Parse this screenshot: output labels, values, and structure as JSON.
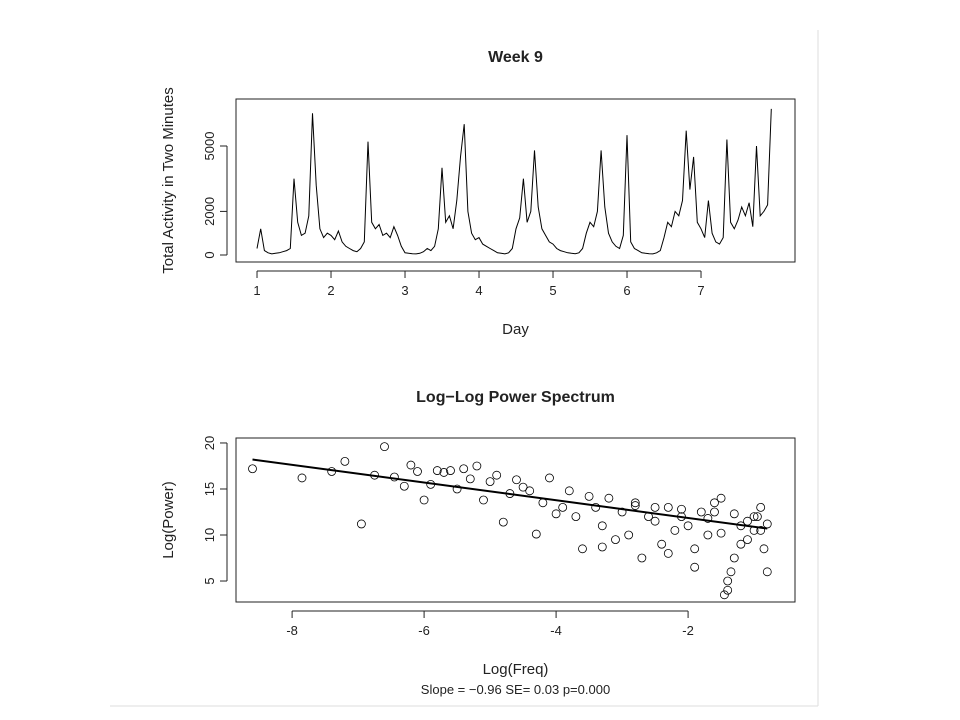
{
  "chart_data": [
    {
      "type": "line",
      "title": "Week 9",
      "x_label": "Day",
      "y_label": "Total Activity in Two Minutes",
      "xlim": [
        0.716,
        8.27
      ],
      "ylim": [
        -321,
        7156
      ],
      "xticks": [
        1,
        2,
        3,
        4,
        5,
        6,
        7
      ],
      "yticks": [
        0,
        2000,
        5000
      ],
      "series": [
        {
          "color": "#000000",
          "x": [
            1.0,
            1.05,
            1.1,
            1.15,
            1.2,
            1.25,
            1.3,
            1.35,
            1.4,
            1.45,
            1.5,
            1.55,
            1.6,
            1.65,
            1.7,
            1.75,
            1.8,
            1.85,
            1.9,
            1.95,
            2.0,
            2.05,
            2.1,
            2.15,
            2.2,
            2.25,
            2.3,
            2.35,
            2.4,
            2.45,
            2.5,
            2.55,
            2.6,
            2.65,
            2.7,
            2.75,
            2.8,
            2.85,
            2.9,
            2.95,
            3.0,
            3.05,
            3.1,
            3.15,
            3.2,
            3.25,
            3.3,
            3.35,
            3.4,
            3.45,
            3.5,
            3.55,
            3.6,
            3.65,
            3.7,
            3.75,
            3.8,
            3.85,
            3.9,
            3.95,
            4.0,
            4.05,
            4.1,
            4.15,
            4.2,
            4.25,
            4.3,
            4.35,
            4.4,
            4.45,
            4.5,
            4.55,
            4.6,
            4.65,
            4.7,
            4.75,
            4.8,
            4.85,
            4.9,
            4.95,
            5.0,
            5.05,
            5.1,
            5.15,
            5.2,
            5.25,
            5.3,
            5.35,
            5.4,
            5.45,
            5.5,
            5.55,
            5.6,
            5.65,
            5.7,
            5.75,
            5.8,
            5.85,
            5.9,
            5.95,
            6.0,
            6.05,
            6.1,
            6.15,
            6.2,
            6.25,
            6.3,
            6.35,
            6.4,
            6.45,
            6.5,
            6.55,
            6.6,
            6.65,
            6.7,
            6.75,
            6.8,
            6.85,
            6.9,
            6.95,
            7.0,
            7.05,
            7.1,
            7.15,
            7.2,
            7.25,
            7.3,
            7.35,
            7.4,
            7.45,
            7.5,
            7.55,
            7.6,
            7.65,
            7.7,
            7.75,
            7.8,
            7.85,
            7.9,
            7.95
          ],
          "values": [
            300,
            1200,
            200,
            100,
            50,
            80,
            100,
            150,
            200,
            300,
            3500,
            1500,
            900,
            1000,
            1800,
            6500,
            3200,
            1200,
            800,
            1000,
            900,
            700,
            1100,
            600,
            400,
            300,
            200,
            150,
            300,
            600,
            5200,
            1500,
            1200,
            1400,
            900,
            1000,
            800,
            1300,
            900,
            400,
            100,
            80,
            60,
            50,
            80,
            150,
            300,
            200,
            400,
            1200,
            4000,
            1500,
            1800,
            1200,
            2500,
            4500,
            6000,
            2000,
            1000,
            700,
            800,
            500,
            400,
            300,
            200,
            100,
            80,
            50,
            100,
            300,
            1200,
            1700,
            3500,
            1500,
            2000,
            4800,
            2200,
            1200,
            900,
            600,
            500,
            300,
            200,
            150,
            100,
            80,
            60,
            100,
            300,
            1000,
            1500,
            1300,
            2000,
            4800,
            2200,
            1000,
            600,
            400,
            300,
            900,
            5500,
            600,
            300,
            200,
            100,
            80,
            60,
            50,
            100,
            200,
            800,
            1500,
            1300,
            2000,
            1800,
            2500,
            5700,
            3000,
            4500,
            1500,
            1200,
            800,
            2500,
            1000,
            600,
            500,
            800,
            5300,
            1500,
            1200,
            1600,
            2200,
            1800,
            2400,
            1300,
            5000,
            1800,
            2000,
            2300,
            6700
          ]
        }
      ]
    },
    {
      "type": "scatter",
      "title": "Log−Log Power Spectrum",
      "x_label": "Log(Freq)",
      "y_label": "Log(Power)",
      "subtitle": "Slope = −0.96 SE= 0.03 p=0.000",
      "xlim": [
        -8.85,
        -0.38
      ],
      "ylim": [
        2.72,
        20.54
      ],
      "xticks": [
        -8,
        -6,
        -4,
        -2
      ],
      "yticks": [
        5,
        10,
        15,
        20
      ],
      "series": [
        {
          "marker": "circle",
          "color": "#000000",
          "x": [
            -8.6,
            -7.85,
            -7.4,
            -7.2,
            -6.95,
            -6.75,
            -6.6,
            -6.45,
            -6.3,
            -6.2,
            -6.1,
            -6.0,
            -5.9,
            -5.8,
            -5.7,
            -5.6,
            -5.5,
            -5.4,
            -5.3,
            -5.2,
            -5.1,
            -5.0,
            -4.9,
            -4.8,
            -4.7,
            -4.6,
            -4.5,
            -4.4,
            -4.3,
            -4.2,
            -4.1,
            -4.0,
            -3.9,
            -3.8,
            -3.7,
            -3.6,
            -3.5,
            -3.4,
            -3.3,
            -3.2,
            -3.1,
            -3.0,
            -2.9,
            -2.8,
            -2.7,
            -2.6,
            -2.5,
            -2.4,
            -2.3,
            -2.2,
            -2.1,
            -2.0,
            -1.9,
            -1.8,
            -1.7,
            -1.6,
            -1.5,
            -1.4,
            -1.3,
            -1.2,
            -1.1,
            -1.0,
            -0.9,
            -0.8,
            -2.5,
            -2.3,
            -2.1,
            -1.9,
            -1.7,
            -1.5,
            -1.3,
            -1.1,
            -0.9,
            -0.8,
            -1.4,
            -1.6,
            -1.2,
            -1.0,
            -0.85,
            -2.8,
            -3.3,
            -1.45,
            -1.35,
            -0.95
          ],
          "values": [
            17.2,
            16.2,
            16.9,
            18.0,
            11.2,
            16.5,
            19.6,
            16.3,
            15.3,
            17.6,
            16.9,
            13.8,
            15.5,
            17.0,
            16.8,
            17.0,
            15.0,
            17.2,
            16.1,
            17.5,
            13.8,
            15.8,
            16.5,
            11.4,
            14.5,
            16.0,
            15.2,
            14.8,
            10.1,
            13.5,
            16.2,
            12.3,
            13.0,
            14.8,
            12.0,
            8.5,
            14.2,
            13.0,
            11.0,
            14.0,
            9.5,
            12.5,
            10.0,
            13.2,
            7.5,
            12.0,
            11.5,
            9.0,
            13.0,
            10.5,
            12.8,
            11.0,
            8.5,
            12.5,
            11.8,
            13.5,
            10.2,
            4.0,
            12.3,
            9.0,
            11.5,
            12.0,
            10.5,
            11.2,
            13.0,
            8.0,
            12.0,
            6.5,
            10.0,
            14.0,
            7.5,
            9.5,
            13.0,
            6.0,
            5.0,
            12.5,
            11.0,
            10.5,
            8.5,
            13.5,
            8.7,
            3.5,
            6.0,
            12.0
          ]
        },
        {
          "marker": "line",
          "color": "#000000",
          "x": [
            -8.6,
            -0.8
          ],
          "values": [
            18.2,
            10.7
          ]
        }
      ]
    }
  ]
}
